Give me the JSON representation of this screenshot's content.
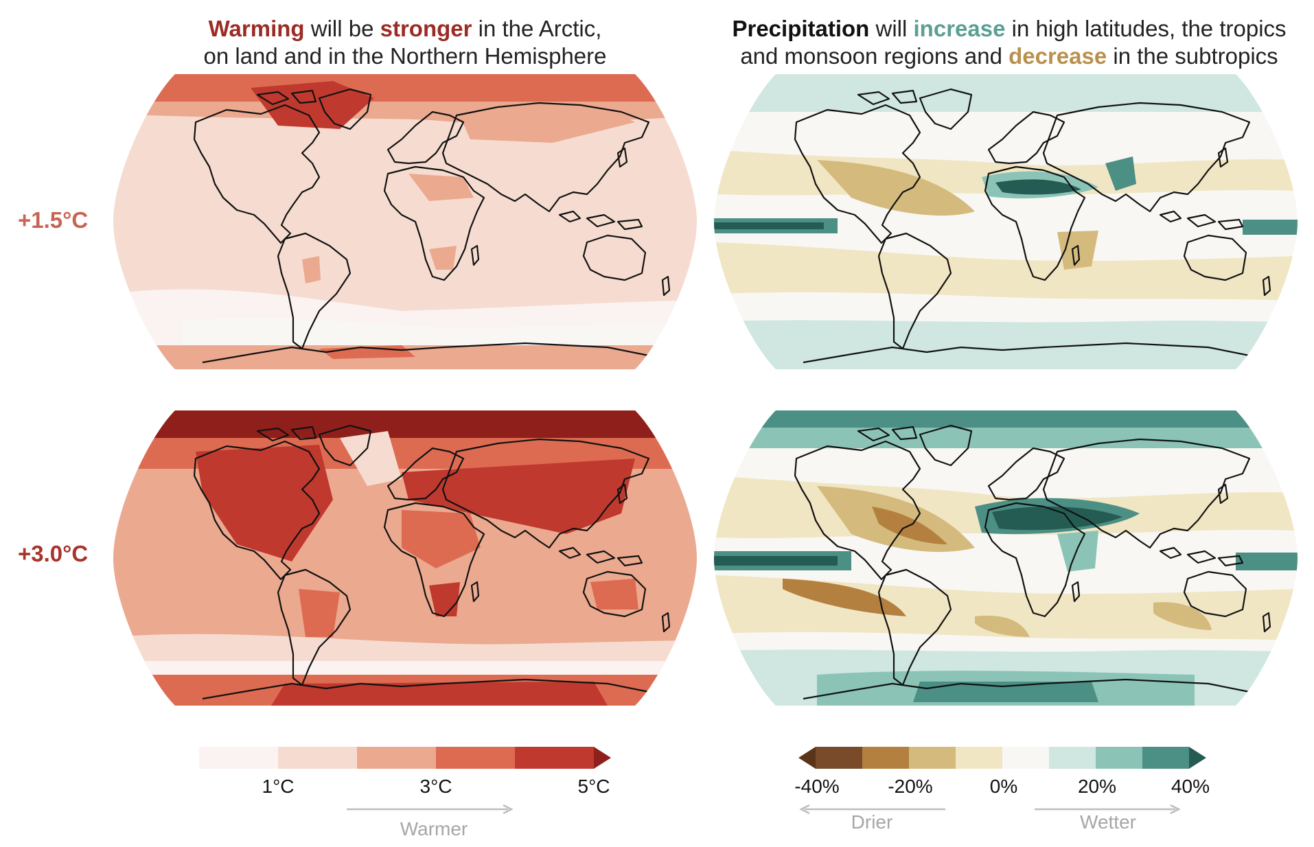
{
  "titles": {
    "temperature": {
      "part1": "Warming",
      "part2": " will be ",
      "part3": "stronger",
      "part4": " in the Arctic,",
      "line2": "on land and in the Northern Hemisphere"
    },
    "precipitation": {
      "part1": "Precipitation",
      "part2": " will ",
      "part3": "increase",
      "part4": " in high latitudes, the tropics",
      "line2a": "and monsoon regions and ",
      "line2b": "decrease",
      "line2c": " in the subtropics"
    }
  },
  "rows": {
    "row1": "+1.5°C",
    "row2": "+3.0°C"
  },
  "legend_temperature": {
    "ticks": [
      "1°C",
      "3°C",
      "5°C"
    ],
    "direction_label": "Warmer",
    "colors": [
      "#fbf3f1",
      "#f6dcd0",
      "#eba98f",
      "#dd6b51",
      "#c0392f",
      "#8f1f1b"
    ]
  },
  "legend_precipitation": {
    "ticks": [
      "-40%",
      "-20%",
      "0%",
      "20%",
      "40%"
    ],
    "left_label": "Drier",
    "right_label": "Wetter",
    "colors": [
      "#5a3418",
      "#7a4b2a",
      "#b3803f",
      "#d4bb7d",
      "#f1e6c3",
      "#f8f7f4",
      "#cfe7e0",
      "#8bc4b7",
      "#4c8f84",
      "#245c54"
    ]
  },
  "map_icons": {
    "temp_15": "world-map-temperature-1-5",
    "prec_15": "world-map-precipitation-1-5",
    "temp_30": "world-map-temperature-3-0",
    "prec_30": "world-map-precipitation-3-0"
  }
}
